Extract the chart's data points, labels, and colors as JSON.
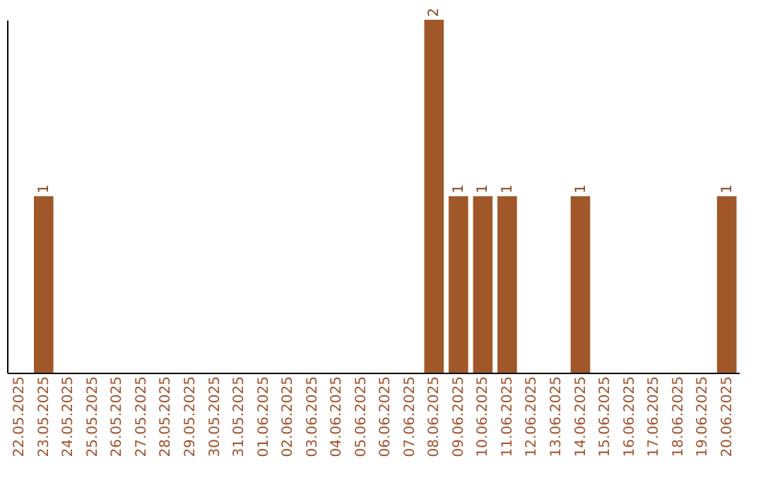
{
  "chart_data": {
    "type": "bar",
    "categories": [
      "22.05.2025",
      "23.05.2025",
      "24.05.2025",
      "25.05.2025",
      "26.05.2025",
      "27.05.2025",
      "28.05.2025",
      "29.05.2025",
      "30.05.2025",
      "31.05.2025",
      "01.06.2025",
      "02.06.2025",
      "03.06.2025",
      "04.06.2025",
      "05.06.2025",
      "06.06.2025",
      "07.06.2025",
      "08.06.2025",
      "09.06.2025",
      "10.06.2025",
      "11.06.2025",
      "12.06.2025",
      "13.06.2025",
      "14.06.2025",
      "15.06.2025",
      "16.06.2025",
      "17.06.2025",
      "18.06.2025",
      "19.06.2025",
      "20.06.2025"
    ],
    "values": [
      0,
      1,
      0,
      0,
      0,
      0,
      0,
      0,
      0,
      0,
      0,
      0,
      0,
      0,
      0,
      0,
      0,
      2,
      1,
      1,
      1,
      0,
      0,
      1,
      0,
      0,
      0,
      0,
      0,
      1
    ],
    "color": "#a0582a",
    "value_labels": [
      null,
      "1",
      null,
      null,
      null,
      null,
      null,
      null,
      null,
      null,
      null,
      null,
      null,
      null,
      null,
      null,
      null,
      "2",
      "1",
      "1",
      "1",
      null,
      null,
      "1",
      null,
      null,
      null,
      null,
      null,
      "1"
    ],
    "grid": false,
    "tick_labels": "x"
  }
}
